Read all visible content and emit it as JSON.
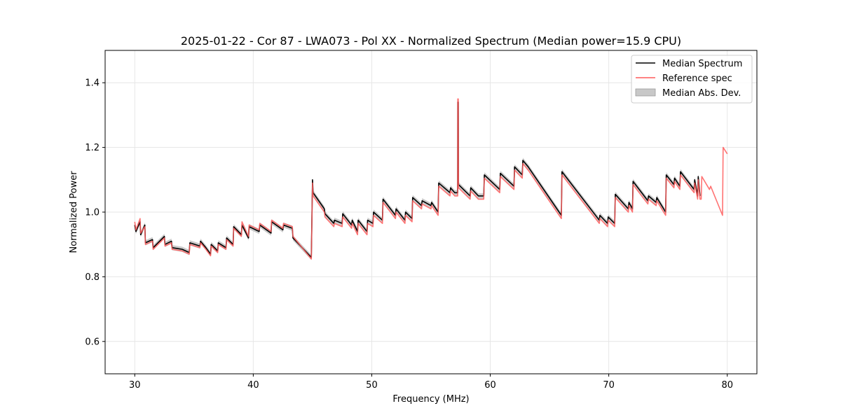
{
  "chart_data": {
    "type": "line",
    "title": "2025-01-22 - Cor 87 - LWA073 - Pol XX - Normalized Spectrum (Median power=15.9 CPU)",
    "xlabel": "Frequency (MHz)",
    "ylabel": "Normalized Power",
    "xlim": [
      27.5,
      82.5
    ],
    "ylim": [
      0.5,
      1.5
    ],
    "xticks": [
      30,
      40,
      50,
      60,
      70,
      80
    ],
    "yticks": [
      0.6,
      0.8,
      1.0,
      1.2,
      1.4
    ],
    "grid": true,
    "legend_position": "top-right",
    "legend": [
      "Median Spectrum",
      "Reference spec",
      "Median Abs. Dev."
    ],
    "colors": {
      "median": "#000000",
      "reference": "#ff5a5a",
      "mad_fill": "#bdbdbd",
      "grid": "#e6e6e6"
    },
    "series": [
      {
        "name": "Median Spectrum",
        "points": [
          [
            30.0,
            0.96
          ],
          [
            30.1,
            0.94
          ],
          [
            30.45,
            0.97
          ],
          [
            30.5,
            0.93
          ],
          [
            30.85,
            0.96
          ],
          [
            30.9,
            0.905
          ],
          [
            31.5,
            0.915
          ],
          [
            31.55,
            0.89
          ],
          [
            32.5,
            0.925
          ],
          [
            32.55,
            0.9
          ],
          [
            33.1,
            0.91
          ],
          [
            33.15,
            0.89
          ],
          [
            34.0,
            0.885
          ],
          [
            34.6,
            0.875
          ],
          [
            34.65,
            0.905
          ],
          [
            35.5,
            0.895
          ],
          [
            35.55,
            0.91
          ],
          [
            36.0,
            0.89
          ],
          [
            36.4,
            0.87
          ],
          [
            36.45,
            0.9
          ],
          [
            37.0,
            0.88
          ],
          [
            37.05,
            0.905
          ],
          [
            37.7,
            0.89
          ],
          [
            37.75,
            0.92
          ],
          [
            38.3,
            0.9
          ],
          [
            38.35,
            0.955
          ],
          [
            39.0,
            0.93
          ],
          [
            39.05,
            0.96
          ],
          [
            39.6,
            0.92
          ],
          [
            39.65,
            0.955
          ],
          [
            40.5,
            0.94
          ],
          [
            40.55,
            0.96
          ],
          [
            41.5,
            0.935
          ],
          [
            41.55,
            0.97
          ],
          [
            42.5,
            0.945
          ],
          [
            42.55,
            0.96
          ],
          [
            43.3,
            0.95
          ],
          [
            43.35,
            0.92
          ],
          [
            44.9,
            0.86
          ],
          [
            45.0,
            1.1
          ],
          [
            45.05,
            1.06
          ],
          [
            46.0,
            1.01
          ],
          [
            46.05,
            0.995
          ],
          [
            46.8,
            0.965
          ],
          [
            46.85,
            0.975
          ],
          [
            47.5,
            0.965
          ],
          [
            47.55,
            0.995
          ],
          [
            48.3,
            0.96
          ],
          [
            48.35,
            0.975
          ],
          [
            48.8,
            0.94
          ],
          [
            48.85,
            0.975
          ],
          [
            49.6,
            0.94
          ],
          [
            49.65,
            0.975
          ],
          [
            50.1,
            0.965
          ],
          [
            50.15,
            1.0
          ],
          [
            50.9,
            0.975
          ],
          [
            50.95,
            1.04
          ],
          [
            52.0,
            0.99
          ],
          [
            52.05,
            1.01
          ],
          [
            52.8,
            0.975
          ],
          [
            52.85,
            1.0
          ],
          [
            53.4,
            0.98
          ],
          [
            53.45,
            1.045
          ],
          [
            54.2,
            1.02
          ],
          [
            54.25,
            1.035
          ],
          [
            55.0,
            1.02
          ],
          [
            55.05,
            1.03
          ],
          [
            55.6,
            1.0
          ],
          [
            55.65,
            1.09
          ],
          [
            56.6,
            1.06
          ],
          [
            56.65,
            1.075
          ],
          [
            57.0,
            1.06
          ],
          [
            57.25,
            1.06
          ],
          [
            57.26,
            1.34
          ],
          [
            57.3,
            1.34
          ],
          [
            57.32,
            1.085
          ],
          [
            58.3,
            1.05
          ],
          [
            58.35,
            1.075
          ],
          [
            59.0,
            1.05
          ],
          [
            59.45,
            1.05
          ],
          [
            59.5,
            1.115
          ],
          [
            60.8,
            1.07
          ],
          [
            60.85,
            1.12
          ],
          [
            62.0,
            1.08
          ],
          [
            62.05,
            1.14
          ],
          [
            62.7,
            1.115
          ],
          [
            62.75,
            1.16
          ],
          [
            63.2,
            1.14
          ],
          [
            66.0,
            0.99
          ],
          [
            66.05,
            1.125
          ],
          [
            69.2,
            0.975
          ],
          [
            69.25,
            0.99
          ],
          [
            69.9,
            0.965
          ],
          [
            69.95,
            0.985
          ],
          [
            70.5,
            0.965
          ],
          [
            70.55,
            1.055
          ],
          [
            71.65,
            1.01
          ],
          [
            71.7,
            1.03
          ],
          [
            72.0,
            1.01
          ],
          [
            72.05,
            1.095
          ],
          [
            73.3,
            1.035
          ],
          [
            73.35,
            1.05
          ],
          [
            74.0,
            1.03
          ],
          [
            74.05,
            1.045
          ],
          [
            74.8,
            1.0
          ],
          [
            74.85,
            1.115
          ],
          [
            75.5,
            1.085
          ],
          [
            75.55,
            1.105
          ],
          [
            76.0,
            1.08
          ],
          [
            76.05,
            1.125
          ],
          [
            77.2,
            1.07
          ],
          [
            77.25,
            1.1
          ],
          [
            77.5,
            1.05
          ],
          [
            77.55,
            1.11
          ],
          [
            77.7,
            1.05
          ]
        ]
      },
      {
        "name": "Reference spec",
        "points": [
          [
            30.0,
            0.97
          ],
          [
            30.1,
            0.945
          ],
          [
            30.45,
            0.98
          ],
          [
            30.5,
            0.935
          ],
          [
            30.85,
            0.955
          ],
          [
            30.9,
            0.9
          ],
          [
            31.5,
            0.91
          ],
          [
            31.55,
            0.885
          ],
          [
            32.5,
            0.92
          ],
          [
            32.55,
            0.895
          ],
          [
            33.1,
            0.905
          ],
          [
            33.15,
            0.885
          ],
          [
            34.0,
            0.88
          ],
          [
            34.6,
            0.87
          ],
          [
            34.65,
            0.9
          ],
          [
            35.5,
            0.89
          ],
          [
            35.55,
            0.905
          ],
          [
            36.0,
            0.885
          ],
          [
            36.4,
            0.865
          ],
          [
            36.45,
            0.895
          ],
          [
            37.0,
            0.875
          ],
          [
            37.05,
            0.9
          ],
          [
            37.7,
            0.885
          ],
          [
            37.75,
            0.915
          ],
          [
            38.3,
            0.895
          ],
          [
            38.35,
            0.95
          ],
          [
            39.0,
            0.925
          ],
          [
            39.05,
            0.97
          ],
          [
            39.6,
            0.925
          ],
          [
            39.65,
            0.96
          ],
          [
            40.5,
            0.945
          ],
          [
            40.55,
            0.965
          ],
          [
            41.5,
            0.94
          ],
          [
            41.55,
            0.975
          ],
          [
            42.5,
            0.95
          ],
          [
            42.55,
            0.965
          ],
          [
            43.3,
            0.955
          ],
          [
            43.35,
            0.925
          ],
          [
            44.9,
            0.855
          ],
          [
            45.0,
            1.09
          ],
          [
            45.05,
            1.05
          ],
          [
            46.0,
            1.0
          ],
          [
            46.05,
            0.985
          ],
          [
            46.8,
            0.955
          ],
          [
            46.85,
            0.965
          ],
          [
            47.5,
            0.955
          ],
          [
            47.55,
            0.985
          ],
          [
            48.3,
            0.95
          ],
          [
            48.35,
            0.965
          ],
          [
            48.8,
            0.93
          ],
          [
            48.85,
            0.965
          ],
          [
            49.6,
            0.93
          ],
          [
            49.65,
            0.965
          ],
          [
            50.1,
            0.955
          ],
          [
            50.15,
            0.99
          ],
          [
            50.9,
            0.965
          ],
          [
            50.95,
            1.03
          ],
          [
            52.0,
            0.98
          ],
          [
            52.05,
            1.0
          ],
          [
            52.8,
            0.965
          ],
          [
            52.85,
            0.99
          ],
          [
            53.4,
            0.97
          ],
          [
            53.45,
            1.035
          ],
          [
            54.2,
            1.01
          ],
          [
            54.25,
            1.025
          ],
          [
            55.0,
            1.01
          ],
          [
            55.05,
            1.02
          ],
          [
            55.6,
            0.99
          ],
          [
            55.65,
            1.08
          ],
          [
            56.6,
            1.05
          ],
          [
            56.65,
            1.065
          ],
          [
            57.0,
            1.05
          ],
          [
            57.25,
            1.05
          ],
          [
            57.26,
            1.35
          ],
          [
            57.3,
            1.35
          ],
          [
            57.32,
            1.075
          ],
          [
            58.3,
            1.04
          ],
          [
            58.35,
            1.065
          ],
          [
            59.0,
            1.04
          ],
          [
            59.45,
            1.04
          ],
          [
            59.5,
            1.105
          ],
          [
            60.8,
            1.06
          ],
          [
            60.85,
            1.11
          ],
          [
            62.0,
            1.07
          ],
          [
            62.05,
            1.13
          ],
          [
            62.7,
            1.105
          ],
          [
            62.75,
            1.15
          ],
          [
            63.2,
            1.13
          ],
          [
            66.0,
            0.98
          ],
          [
            66.05,
            1.115
          ],
          [
            69.2,
            0.965
          ],
          [
            69.25,
            0.98
          ],
          [
            69.9,
            0.955
          ],
          [
            69.95,
            0.975
          ],
          [
            70.5,
            0.955
          ],
          [
            70.55,
            1.045
          ],
          [
            71.65,
            1.0
          ],
          [
            71.7,
            1.02
          ],
          [
            72.0,
            1.0
          ],
          [
            72.05,
            1.085
          ],
          [
            73.3,
            1.025
          ],
          [
            73.35,
            1.04
          ],
          [
            74.0,
            1.02
          ],
          [
            74.05,
            1.035
          ],
          [
            74.8,
            0.99
          ],
          [
            74.85,
            1.105
          ],
          [
            75.5,
            1.075
          ],
          [
            75.55,
            1.095
          ],
          [
            76.0,
            1.07
          ],
          [
            76.05,
            1.115
          ],
          [
            77.2,
            1.06
          ],
          [
            77.25,
            1.09
          ],
          [
            77.5,
            1.04
          ],
          [
            77.55,
            1.1
          ],
          [
            77.7,
            1.04
          ],
          [
            77.8,
            1.04
          ],
          [
            77.85,
            1.11
          ],
          [
            78.5,
            1.07
          ],
          [
            78.6,
            1.08
          ],
          [
            79.6,
            0.99
          ],
          [
            79.65,
            1.2
          ],
          [
            80.0,
            1.18
          ]
        ]
      }
    ],
    "mad_band_halfwidth": 0.008
  }
}
